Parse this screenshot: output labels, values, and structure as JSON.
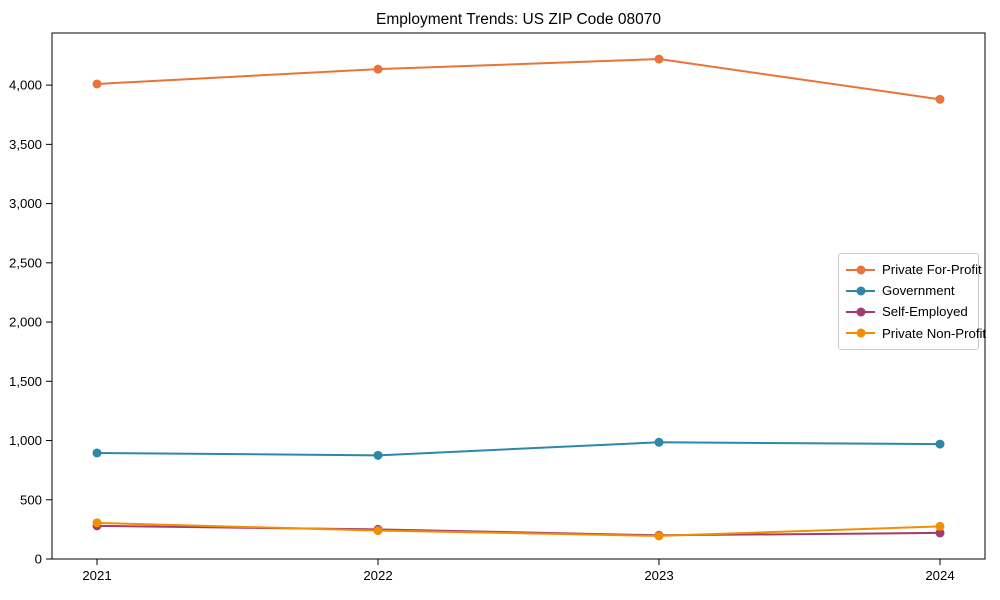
{
  "chart_data": {
    "type": "line",
    "title": "Employment Trends: US ZIP Code 08070",
    "xlabel": "",
    "ylabel": "",
    "x": [
      2021,
      2022,
      2023,
      2024
    ],
    "x_tick_labels": [
      "2021",
      "2022",
      "2023",
      "2024"
    ],
    "y_ticks": [
      0,
      500,
      1000,
      1500,
      2000,
      2500,
      3000,
      3500,
      4000
    ],
    "y_tick_labels": [
      "0",
      "500",
      "1,000",
      "1,500",
      "2,000",
      "2,500",
      "3,000",
      "3,500",
      "4,000"
    ],
    "ylim": [
      0,
      4440
    ],
    "grid": false,
    "legend_position": "right-middle",
    "series": [
      {
        "name": "Private For-Profit",
        "color": "#E8743B",
        "values": [
          4010,
          4135,
          4220,
          3880
        ]
      },
      {
        "name": "Government",
        "color": "#2E86AB",
        "values": [
          895,
          875,
          985,
          970
        ]
      },
      {
        "name": "Self-Employed",
        "color": "#A23B72",
        "values": [
          280,
          250,
          200,
          220
        ]
      },
      {
        "name": "Private Non-Profit",
        "color": "#F18F01",
        "values": [
          305,
          240,
          195,
          275
        ]
      }
    ]
  }
}
